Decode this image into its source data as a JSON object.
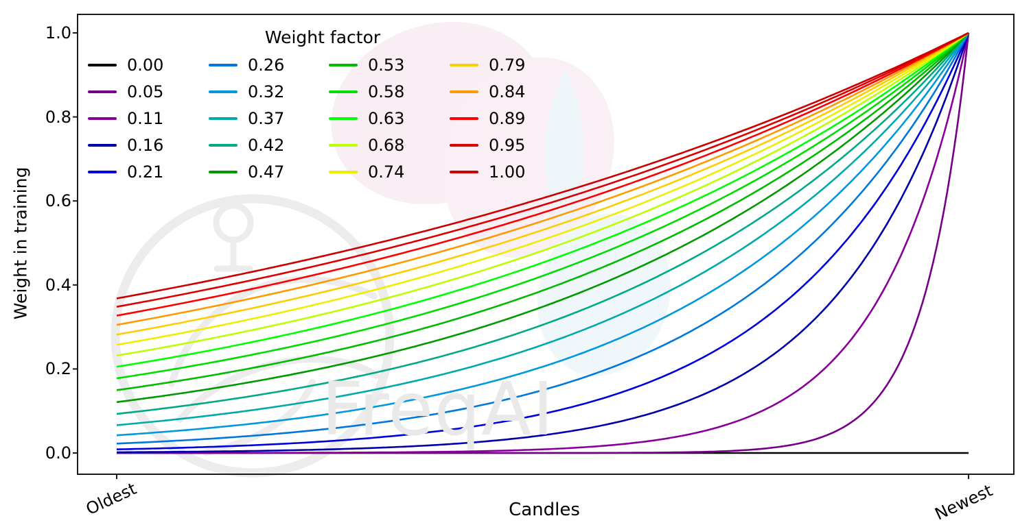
{
  "figure": {
    "background_color": "#ffffff",
    "spine_color": "#1a1a1a",
    "text_color": "#000000",
    "watermark_text": "FreqAI"
  },
  "chart_data": {
    "type": "line",
    "title": "",
    "xlabel": "Candles",
    "ylabel": "Weight in training",
    "xtick_labels": [
      "Oldest",
      "Newest"
    ],
    "ytick_labels": [
      "0.0",
      "0.2",
      "0.4",
      "0.6",
      "0.8",
      "1.0"
    ],
    "ytick_values": [
      0.0,
      0.2,
      0.4,
      0.6,
      0.8,
      1.0
    ],
    "ylim": [
      -0.05,
      1.05
    ],
    "x_axis_note": "x runs from Oldest candle (t=0) to Newest candle (t=1), no numeric ticks",
    "grid": false,
    "legend": {
      "title": "Weight factor",
      "position": "upper left",
      "columns": 4,
      "rows": 5,
      "frame": false
    },
    "formula": "weight(t) = exp(-(1 - t) / weight_factor), t in [0,1]; weight_factor = 0 gives constant 0",
    "colormap": "nipy_spectral sampled at 0.00..0.95 step 0.05",
    "series": [
      {
        "label": "0.00",
        "weight_factor": 0.0,
        "color": "#000000",
        "value_at_oldest": 0.0,
        "value_at_newest": 0.0
      },
      {
        "label": "0.05",
        "weight_factor": 0.0526,
        "color": "#770088",
        "value_at_oldest": 0.0,
        "value_at_newest": 1.0
      },
      {
        "label": "0.11",
        "weight_factor": 0.1053,
        "color": "#880099",
        "value_at_oldest": 0.0,
        "value_at_newest": 1.0
      },
      {
        "label": "0.16",
        "weight_factor": 0.1579,
        "color": "#0000aa",
        "value_at_oldest": 0.002,
        "value_at_newest": 1.0
      },
      {
        "label": "0.21",
        "weight_factor": 0.2105,
        "color": "#0000dd",
        "value_at_oldest": 0.009,
        "value_at_newest": 1.0
      },
      {
        "label": "0.26",
        "weight_factor": 0.2632,
        "color": "#0077dd",
        "value_at_oldest": 0.022,
        "value_at_newest": 1.0
      },
      {
        "label": "0.32",
        "weight_factor": 0.3158,
        "color": "#0099dd",
        "value_at_oldest": 0.042,
        "value_at_newest": 1.0
      },
      {
        "label": "0.37",
        "weight_factor": 0.3684,
        "color": "#00aaaa",
        "value_at_oldest": 0.066,
        "value_at_newest": 1.0
      },
      {
        "label": "0.42",
        "weight_factor": 0.4211,
        "color": "#00aa88",
        "value_at_oldest": 0.093,
        "value_at_newest": 1.0
      },
      {
        "label": "0.47",
        "weight_factor": 0.4737,
        "color": "#009900",
        "value_at_oldest": 0.121,
        "value_at_newest": 1.0
      },
      {
        "label": "0.53",
        "weight_factor": 0.5263,
        "color": "#00bb00",
        "value_at_oldest": 0.15,
        "value_at_newest": 1.0
      },
      {
        "label": "0.58",
        "weight_factor": 0.5789,
        "color": "#00dd00",
        "value_at_oldest": 0.178,
        "value_at_newest": 1.0
      },
      {
        "label": "0.63",
        "weight_factor": 0.6316,
        "color": "#00ff00",
        "value_at_oldest": 0.205,
        "value_at_newest": 1.0
      },
      {
        "label": "0.68",
        "weight_factor": 0.6842,
        "color": "#bbff00",
        "value_at_oldest": 0.232,
        "value_at_newest": 1.0
      },
      {
        "label": "0.74",
        "weight_factor": 0.7368,
        "color": "#eeee00",
        "value_at_oldest": 0.257,
        "value_at_newest": 1.0
      },
      {
        "label": "0.79",
        "weight_factor": 0.7895,
        "color": "#ffcc00",
        "value_at_oldest": 0.282,
        "value_at_newest": 1.0
      },
      {
        "label": "0.84",
        "weight_factor": 0.8421,
        "color": "#ff9900",
        "value_at_oldest": 0.305,
        "value_at_newest": 1.0
      },
      {
        "label": "0.89",
        "weight_factor": 0.8947,
        "color": "#ff0000",
        "value_at_oldest": 0.327,
        "value_at_newest": 1.0
      },
      {
        "label": "0.95",
        "weight_factor": 0.9474,
        "color": "#dd0000",
        "value_at_oldest": 0.348,
        "value_at_newest": 1.0
      },
      {
        "label": "1.00",
        "weight_factor": 1.0,
        "color": "#cc0000",
        "value_at_oldest": 0.368,
        "value_at_newest": 1.0
      }
    ]
  }
}
